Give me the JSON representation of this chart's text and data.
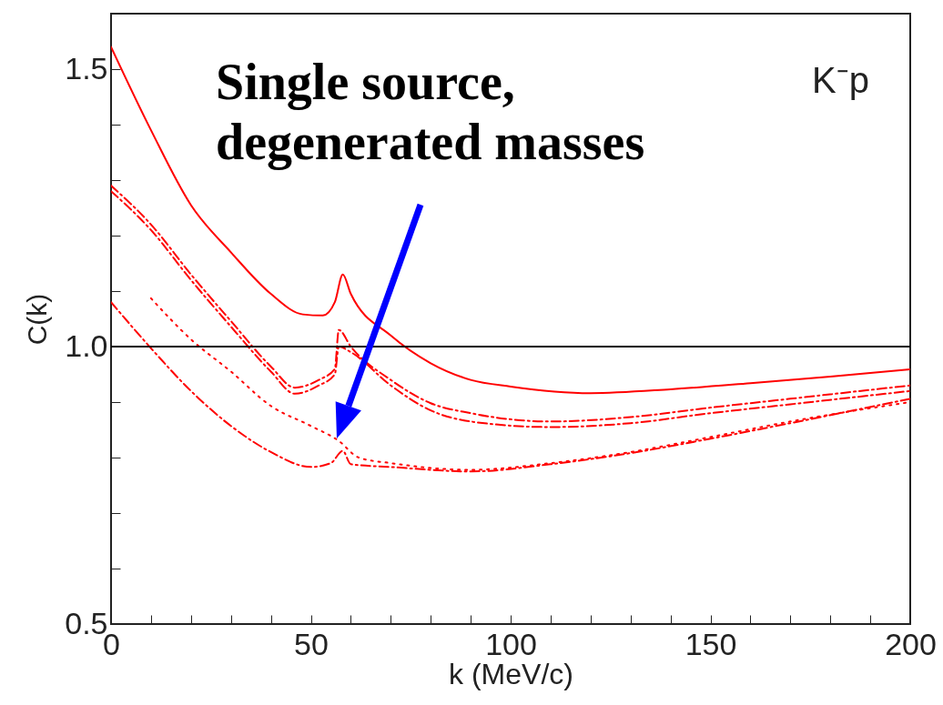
{
  "chart_data": {
    "type": "line",
    "xlabel": "k (MeV/c)",
    "ylabel": "C(k)",
    "xlim": [
      0,
      200
    ],
    "ylim": [
      0.5,
      1.6
    ],
    "xticks": [
      0,
      {
        "value": 10,
        "label": null
      },
      {
        "value": 20,
        "label": null
      },
      {
        "value": 30,
        "label": null
      },
      {
        "value": 40,
        "label": null
      },
      50,
      {
        "value": 60,
        "label": null
      },
      {
        "value": 70,
        "label": null
      },
      {
        "value": 80,
        "label": null
      },
      {
        "value": 90,
        "label": null
      },
      100,
      {
        "value": 110,
        "label": null
      },
      {
        "value": 120,
        "label": null
      },
      {
        "value": 130,
        "label": null
      },
      {
        "value": 140,
        "label": null
      },
      150,
      {
        "value": 160,
        "label": null
      },
      {
        "value": 170,
        "label": null
      },
      {
        "value": 180,
        "label": null
      },
      {
        "value": 190,
        "label": null
      },
      200
    ],
    "yticks": [
      {
        "value": 0.5,
        "label": "0.5"
      },
      {
        "value": 0.6,
        "label": null
      },
      {
        "value": 0.7,
        "label": null
      },
      {
        "value": 0.8,
        "label": null
      },
      {
        "value": 0.9,
        "label": null
      },
      {
        "value": 1.0,
        "label": "1.0"
      },
      {
        "value": 1.1,
        "label": null
      },
      {
        "value": 1.2,
        "label": null
      },
      {
        "value": 1.3,
        "label": null
      },
      {
        "value": 1.4,
        "label": null
      },
      {
        "value": 1.5,
        "label": "1.5"
      }
    ],
    "grid": false,
    "series": [
      {
        "color": "#ff0000",
        "line_style": "solid",
        "x": [
          0,
          10,
          20,
          30,
          40,
          48,
          53,
          56,
          58,
          60,
          70,
          80,
          90,
          100,
          120,
          140,
          160,
          180,
          200
        ],
        "values": [
          1.54,
          1.39,
          1.255,
          1.17,
          1.095,
          1.058,
          1.056,
          1.08,
          1.13,
          1.095,
          1.02,
          0.97,
          0.94,
          0.928,
          0.916,
          0.923,
          0.934,
          0.946,
          0.959
        ]
      },
      {
        "color": "#ff0000",
        "line_style": "dashed",
        "x": [
          0,
          10,
          20,
          30,
          40,
          46,
          52,
          56,
          57,
          60,
          70,
          80,
          90,
          110,
          130,
          150,
          170,
          200
        ],
        "values": [
          1.29,
          1.22,
          1.13,
          1.046,
          0.964,
          0.926,
          0.94,
          0.96,
          1.03,
          1.0,
          0.94,
          0.898,
          0.88,
          0.865,
          0.873,
          0.89,
          0.906,
          0.93
        ]
      },
      {
        "color": "#ff0000",
        "line_style": "dashed",
        "x": [
          0,
          10,
          20,
          30,
          40,
          46,
          52,
          56,
          57,
          60,
          70,
          80,
          90,
          110,
          130,
          150,
          170,
          200
        ],
        "values": [
          1.28,
          1.21,
          1.12,
          1.036,
          0.955,
          0.915,
          0.93,
          0.95,
          1.0,
          0.99,
          0.93,
          0.885,
          0.865,
          0.855,
          0.862,
          0.88,
          0.896,
          0.92
        ]
      },
      {
        "color": "#ff0000",
        "line_style": "dotted",
        "x": [
          10,
          20,
          30,
          40,
          50,
          57,
          62,
          70,
          90,
          110,
          130,
          150,
          170,
          200
        ],
        "values": [
          1.087,
          1.013,
          0.955,
          0.893,
          0.857,
          0.83,
          0.8,
          0.79,
          0.778,
          0.79,
          0.81,
          0.837,
          0.865,
          0.9
        ]
      },
      {
        "color": "#ff0000",
        "line_style": "dashed",
        "x": [
          0,
          10,
          20,
          30,
          40,
          50,
          55,
          58,
          60,
          70,
          90,
          110,
          130,
          150,
          170,
          200
        ],
        "values": [
          1.08,
          0.997,
          0.92,
          0.857,
          0.81,
          0.783,
          0.79,
          0.812,
          0.788,
          0.783,
          0.775,
          0.788,
          0.808,
          0.834,
          0.862,
          0.906
        ]
      }
    ],
    "ref_lines": [
      {
        "axis": "y",
        "value": 1.0,
        "color": "#000000"
      }
    ],
    "annotations": [
      "Single source, degenerated masses",
      "K⁻p"
    ]
  }
}
